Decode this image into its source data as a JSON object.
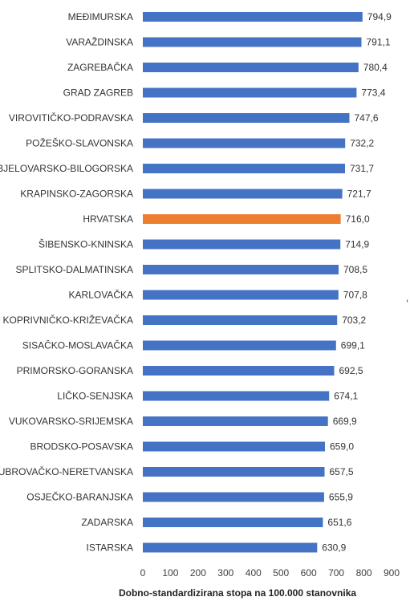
{
  "chart_data": {
    "type": "bar",
    "orientation": "horizontal",
    "categories": [
      "MEĐIMURSKA",
      "VARAŽDINSKA",
      "ZAGREBAČKA",
      "GRAD ZAGREB",
      "VIROVITIČKO-PODRAVSKA",
      "POŽEŠKO-SLAVONSKA",
      "BJELOVARSKO-BILOGORSKA",
      "KRAPINSKO-ZAGORSKA",
      "HRVATSKA",
      "ŠIBENSKO-KNINSKA",
      "SPLITSKO-DALMATINSKA",
      "KARLOVAČKA",
      "KOPRIVNIČKO-KRIŽEVAČKA",
      "SISAČKO-MOSLAVAČKA",
      "PRIMORSKO-GORANSKA",
      "LIČKO-SENJSKA",
      "VUKOVARSKO-SRIJEMSKA",
      "BRODSKO-POSAVSKA",
      "DUBROVAČKO-NERETVANSKA",
      "OSJEČKO-BARANJSKA",
      "ZADARSKA",
      "ISTARSKA"
    ],
    "values": [
      794.9,
      791.1,
      780.4,
      773.4,
      747.6,
      732.2,
      731.7,
      721.7,
      716.0,
      714.9,
      708.5,
      707.8,
      703.2,
      699.1,
      692.5,
      674.1,
      669.9,
      659.0,
      657.5,
      655.9,
      651.6,
      630.9
    ],
    "value_labels": [
      "794,9",
      "791,1",
      "780,4",
      "773,4",
      "747,6",
      "732,2",
      "731,7",
      "721,7",
      "716,0",
      "714,9",
      "708,5",
      "707,8",
      "703,2",
      "699,1",
      "692,5",
      "674,1",
      "669,9",
      "659,0",
      "657,5",
      "655,9",
      "651,6",
      "630,9"
    ],
    "xlabel": "Dobno-standardizirana stopa na 100.000 stanovnika",
    "xlim": [
      0,
      900
    ],
    "xticks": [
      0,
      100,
      200,
      300,
      400,
      500,
      600,
      700,
      800,
      900
    ],
    "grid": false,
    "colors": {
      "default": "#4472C4",
      "highlight": "#ED7D31"
    },
    "highlight_category": "HRVATSKA"
  }
}
